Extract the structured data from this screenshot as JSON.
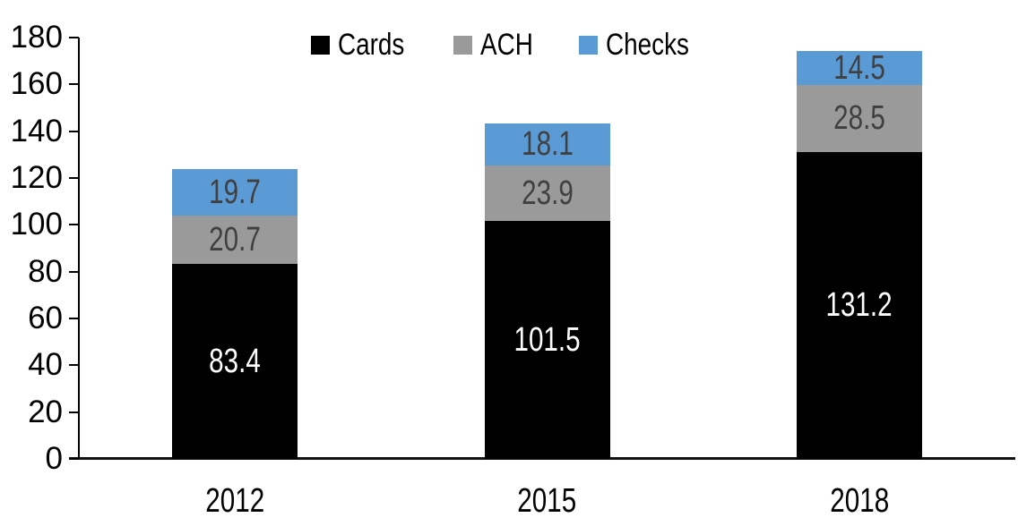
{
  "chart_data": {
    "type": "bar",
    "subtype": "stacked-vertical",
    "title": "",
    "categories": [
      "2012",
      "2015",
      "2018"
    ],
    "series": [
      {
        "name": "Cards",
        "color": "#000000",
        "label_color": "#FFFFFF",
        "values": [
          83.4,
          101.5,
          131.2
        ]
      },
      {
        "name": "ACH",
        "color": "#9A9A9A",
        "label_color": "#404040",
        "values": [
          20.7,
          23.9,
          28.5
        ]
      },
      {
        "name": "Checks",
        "color": "#5B9BD5",
        "label_color": "#404040",
        "values": [
          19.7,
          18.1,
          14.5
        ]
      }
    ],
    "totals": [
      123.8,
      143.5,
      174.2
    ],
    "xlabel": "",
    "ylabel": "",
    "ylim": [
      0,
      180
    ],
    "ytick_step": 20,
    "ytick_labels": [
      "0",
      "20",
      "40",
      "60",
      "80",
      "100",
      "120",
      "140",
      "160",
      "180"
    ],
    "grid": false,
    "legend_position": "top-center",
    "data_labels_visible": true,
    "axis_color": "#000000"
  }
}
